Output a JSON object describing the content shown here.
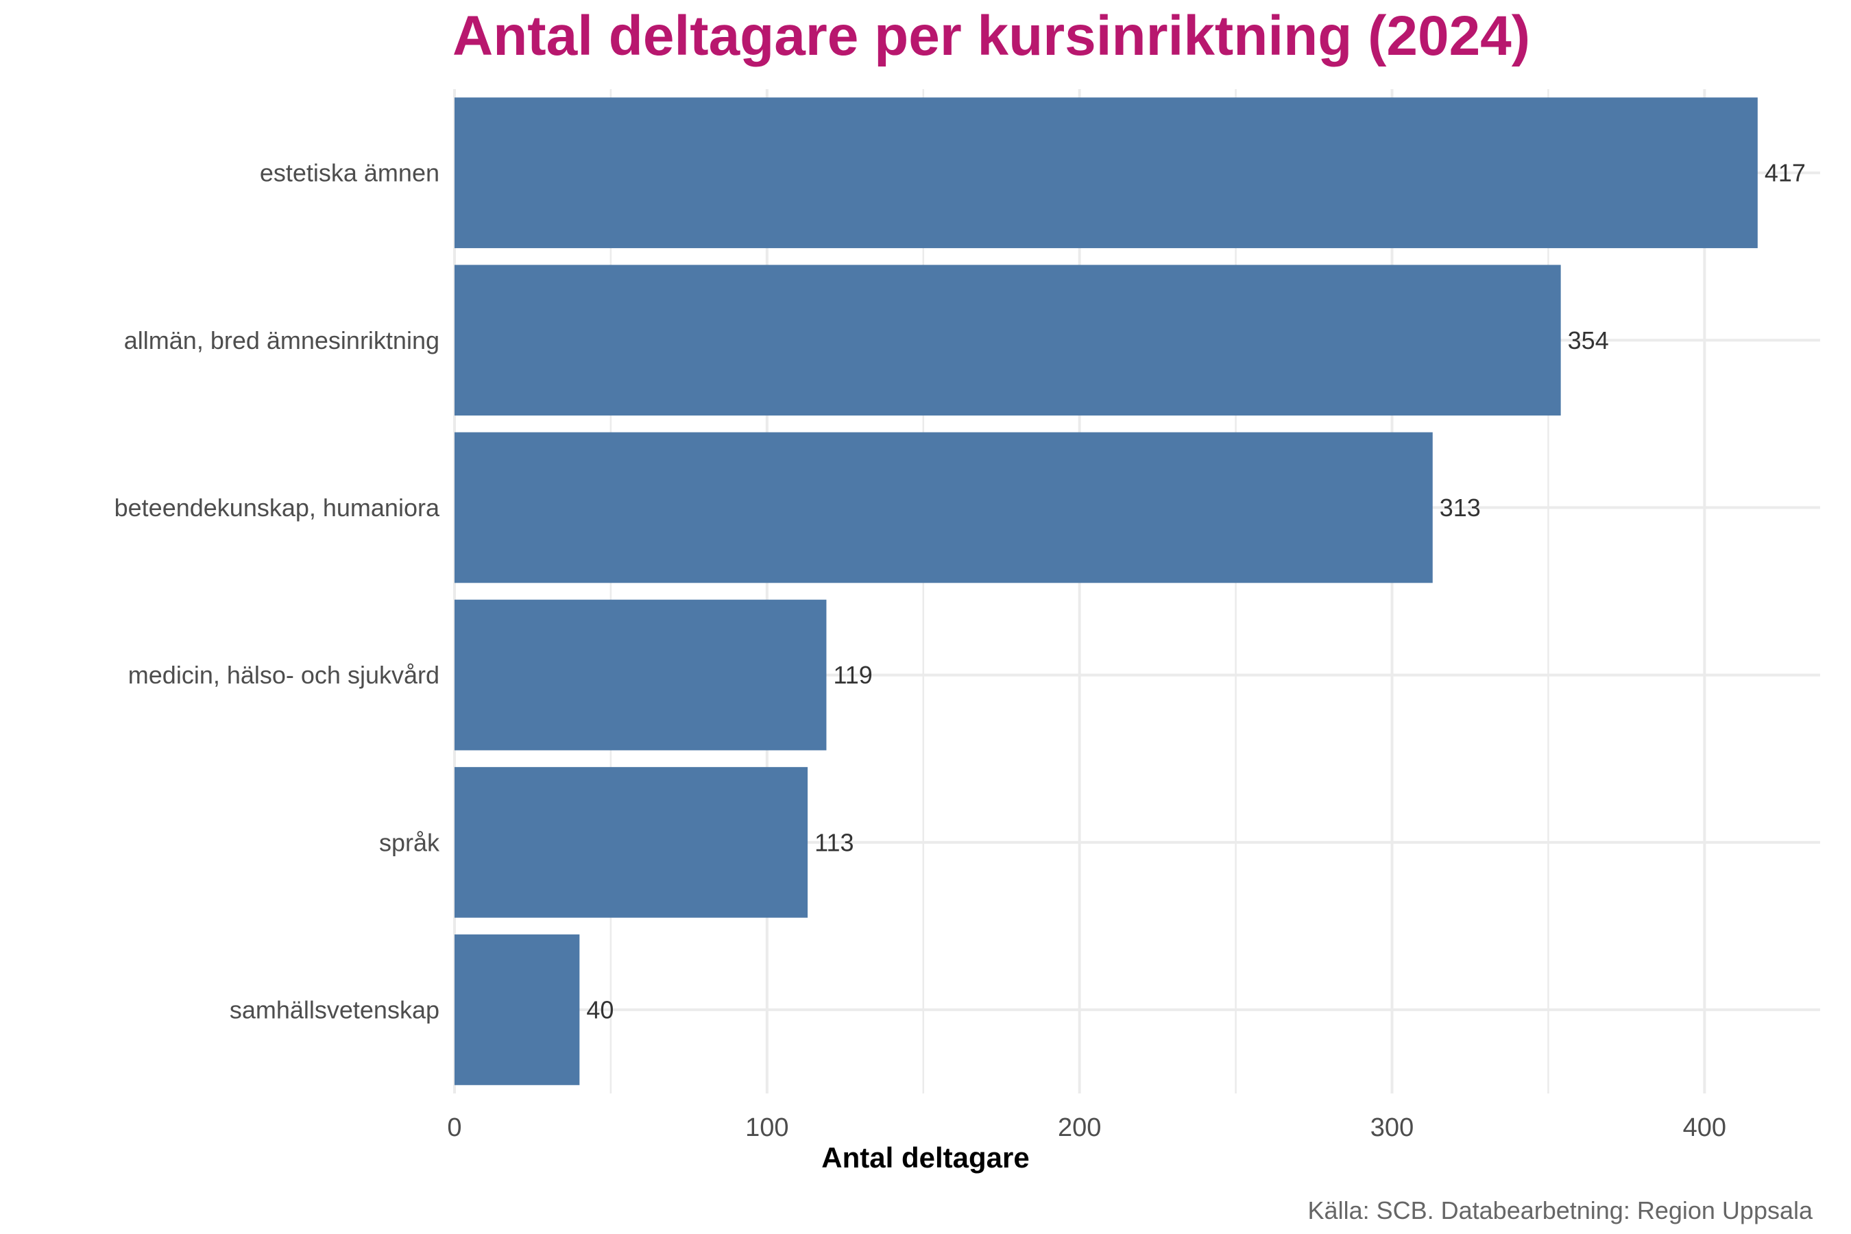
{
  "chart_data": {
    "type": "bar",
    "orientation": "horizontal",
    "title": "Antal deltagare per kursinriktning (2024)",
    "xlabel": "Antal deltagare",
    "ylabel": "",
    "caption": "Källa: SCB. Databearbetning: Region Uppsala",
    "categories": [
      "estetiska ämnen",
      "allmän, bred ämnesinriktning",
      "beteendekunskap, humaniora",
      "medicin, hälso- och sjukvård",
      "språk",
      "samhällsvetenskap"
    ],
    "values": [
      417,
      354,
      313,
      119,
      113,
      40
    ],
    "xlim": [
      0,
      437
    ],
    "xticks": [
      0,
      100,
      200,
      300,
      400
    ],
    "grid": true,
    "bar_color": "#4e79a7",
    "title_color": "#b8176e"
  }
}
